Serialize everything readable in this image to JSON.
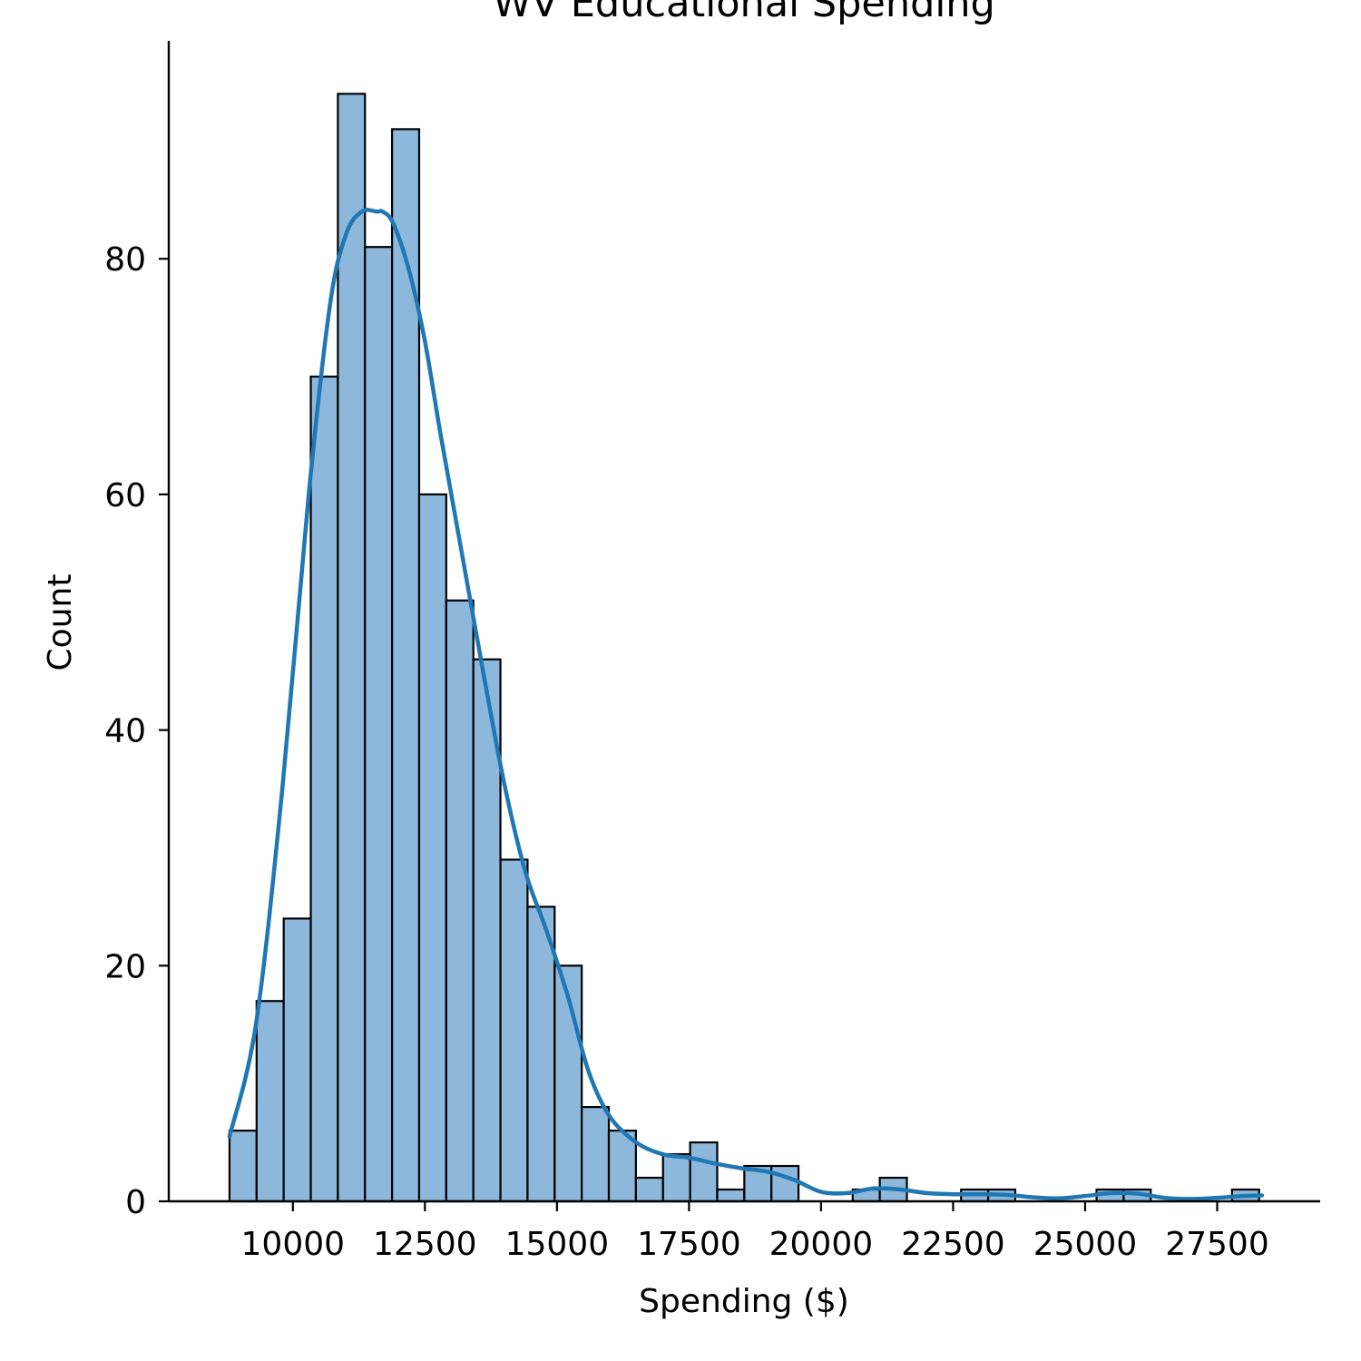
{
  "chart_data": {
    "type": "bar",
    "subtype": "histogram-with-kde",
    "title": "WV Educational Spending",
    "xlabel": "Spending ($)",
    "ylabel": "Count",
    "bin_start": 8800,
    "bin_width": 513,
    "counts": [
      6,
      17,
      24,
      70,
      94,
      81,
      91,
      60,
      51,
      46,
      29,
      25,
      20,
      8,
      6,
      2,
      4,
      5,
      1,
      3,
      3,
      0,
      0,
      1,
      2,
      0,
      0,
      1,
      1,
      0,
      0,
      0,
      1,
      1,
      0,
      0,
      0,
      1
    ],
    "kde": {
      "x": [
        8800,
        9300,
        9800,
        10300,
        10700,
        11000,
        11300,
        11600,
        11700,
        11900,
        12200,
        12500,
        12800,
        13200,
        13600,
        14000,
        14400,
        14800,
        15200,
        15600,
        16000,
        16500,
        17000,
        17500,
        18000,
        18500,
        19000,
        19500,
        20000,
        20500,
        21000,
        21500,
        22000,
        22500,
        23000,
        23500,
        24000,
        24500,
        25000,
        25500,
        26000,
        26500,
        27000,
        27500,
        28000,
        28350
      ],
      "y": [
        5.5,
        15,
        35,
        60,
        76,
        82,
        84,
        84,
        84,
        83,
        79,
        73,
        65,
        55,
        45,
        35.5,
        28,
        23,
        17.5,
        11,
        7.2,
        5,
        4,
        3.7,
        3.2,
        2.8,
        2.5,
        1.8,
        0.8,
        0.7,
        1.1,
        1.0,
        0.7,
        0.6,
        0.6,
        0.55,
        0.35,
        0.25,
        0.45,
        0.7,
        0.65,
        0.3,
        0.2,
        0.3,
        0.45,
        0.5
      ]
    },
    "xlim": [
      7650,
      29450
    ],
    "ylim": [
      0,
      98.5
    ],
    "x_ticks": [
      10000,
      12500,
      15000,
      17500,
      20000,
      22500,
      25000,
      27500
    ],
    "y_ticks": [
      0,
      20,
      40,
      60,
      80
    ],
    "colors": {
      "bar_fill": "#8db8dc",
      "bar_edge": "#000000",
      "kde_line": "#1f77b4"
    },
    "grid": false,
    "legend": "none"
  }
}
